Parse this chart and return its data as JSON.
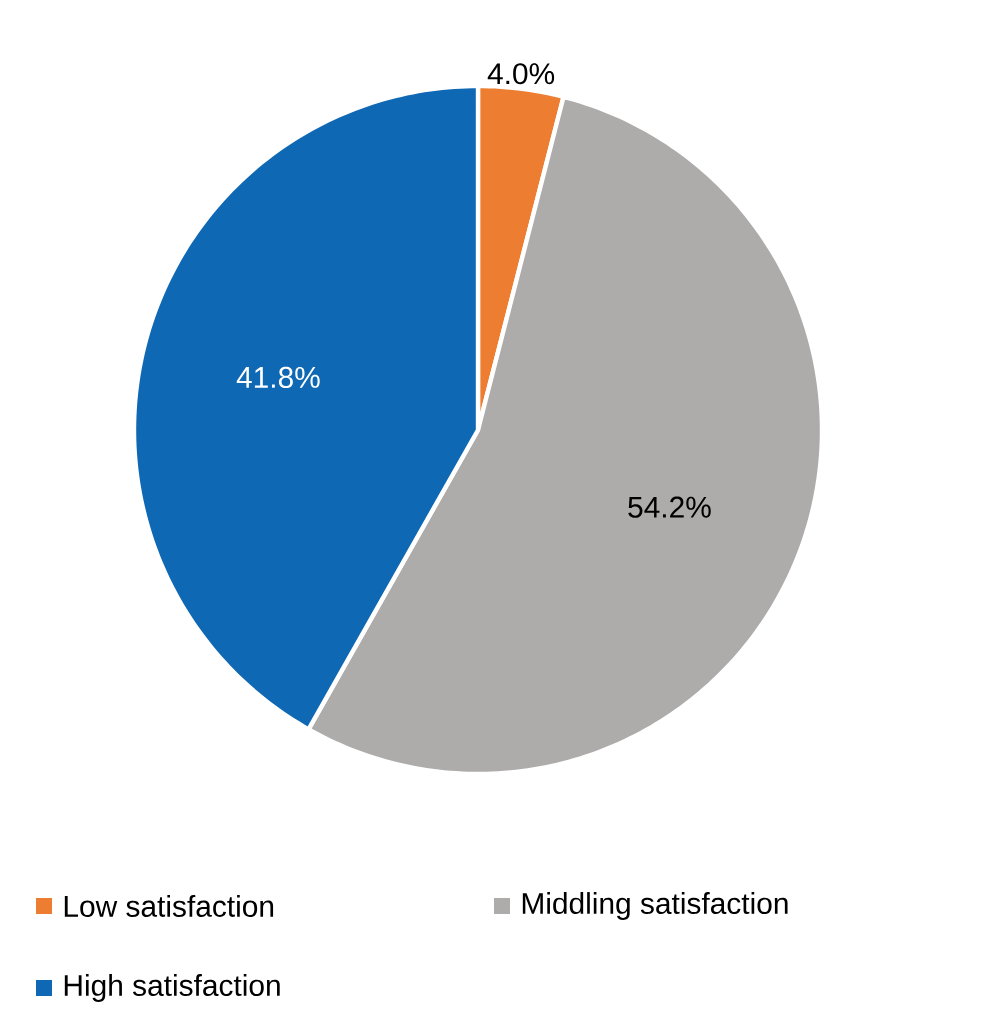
{
  "chart_data": {
    "type": "pie",
    "categories": [
      "Low satisfaction",
      "Middling satisfaction",
      "High satisfaction"
    ],
    "values": [
      4.0,
      54.2,
      41.8
    ],
    "colors": [
      "#ed7d31",
      "#aeabab",
      "#0f68b3"
    ],
    "value_labels": [
      "4.0%",
      "54.2%",
      "41.8%"
    ],
    "legend": "bottom"
  }
}
